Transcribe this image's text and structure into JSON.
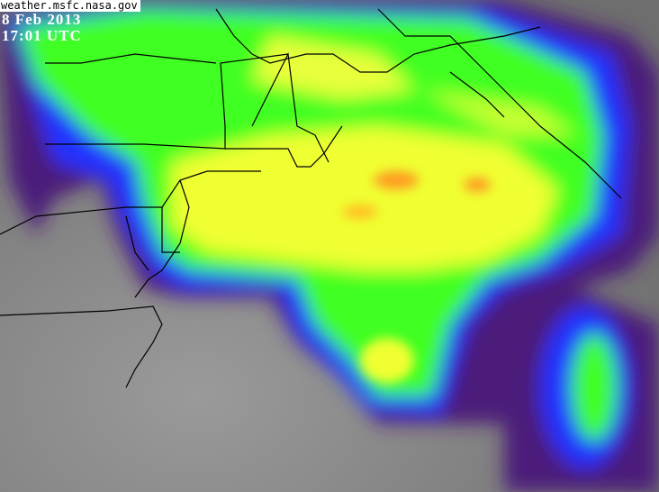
{
  "image": {
    "source_label": "weather.msfc.nasa.gov",
    "date": "8 Feb 2013",
    "time": "17:01 UTC",
    "kind": "false-color infrared satellite image of a storm over the US Northeast and Atlantic",
    "colors": {
      "background_gray": "#7a7a7a",
      "outer_cloud": "#4b1a7a",
      "blue": "#1e2bff",
      "green": "#3cff20",
      "yellow": "#f4ff30",
      "orange": "#ff9a20",
      "borders": "#000000"
    }
  }
}
